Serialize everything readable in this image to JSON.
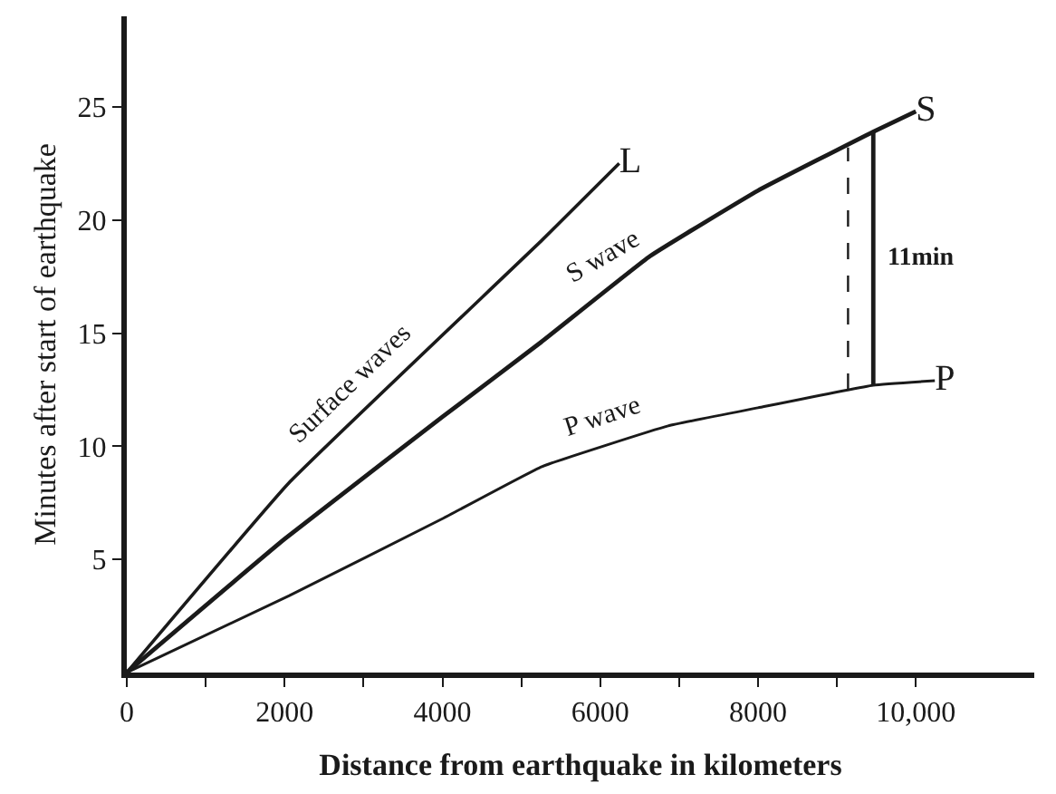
{
  "chart_data": {
    "type": "line",
    "xlabel": "Distance from earthquake in kilometers",
    "ylabel": "Minutes after start of earthquake",
    "series": [
      {
        "name": "L",
        "color": "#1a1a1a",
        "x": [
          0,
          2060,
          5260,
          6240
        ],
        "values": [
          0,
          8.4,
          19.1,
          22.5
        ]
      },
      {
        "name": "S",
        "color": "#1a1a1a",
        "x": [
          0,
          2000,
          4000,
          5250,
          6630,
          8000,
          9460,
          10000
        ],
        "values": [
          0,
          5.9,
          11.3,
          14.6,
          18.4,
          21.3,
          23.9,
          24.8
        ]
      },
      {
        "name": "P",
        "color": "#1a1a1a",
        "x": [
          0,
          2060,
          4000,
          5260,
          6860,
          8000,
          9460,
          10240
        ],
        "values": [
          0,
          3.4,
          6.8,
          9.1,
          10.9,
          11.7,
          12.7,
          12.9
        ]
      },
      {
        "color": "#1a1a1a",
        "x": [
          9140,
          9140
        ],
        "values": [
          12.5,
          23.2
        ],
        "line_style": "dashed"
      },
      {
        "color": "#1a1a1a",
        "x": [
          9460,
          9460
        ],
        "values": [
          12.7,
          23.9
        ]
      }
    ],
    "annotations": [
      "Surface waves",
      "S wave",
      "P wave",
      "11min"
    ],
    "xlim": [
      0,
      11500
    ],
    "ylim": [
      0,
      29
    ],
    "xticks": [
      0,
      {
        "value": 1000,
        "label": null
      },
      2000,
      {
        "value": 3000,
        "label": null
      },
      4000,
      {
        "value": 5000,
        "label": null
      },
      6000,
      {
        "value": 7000,
        "label": null
      },
      8000,
      {
        "value": 9000,
        "label": null
      },
      {
        "value": 10000,
        "label": "10,000"
      }
    ],
    "yticks": [
      5,
      10,
      15,
      20,
      25
    ],
    "legend": false,
    "marker": "none",
    "line_style": "solid"
  }
}
